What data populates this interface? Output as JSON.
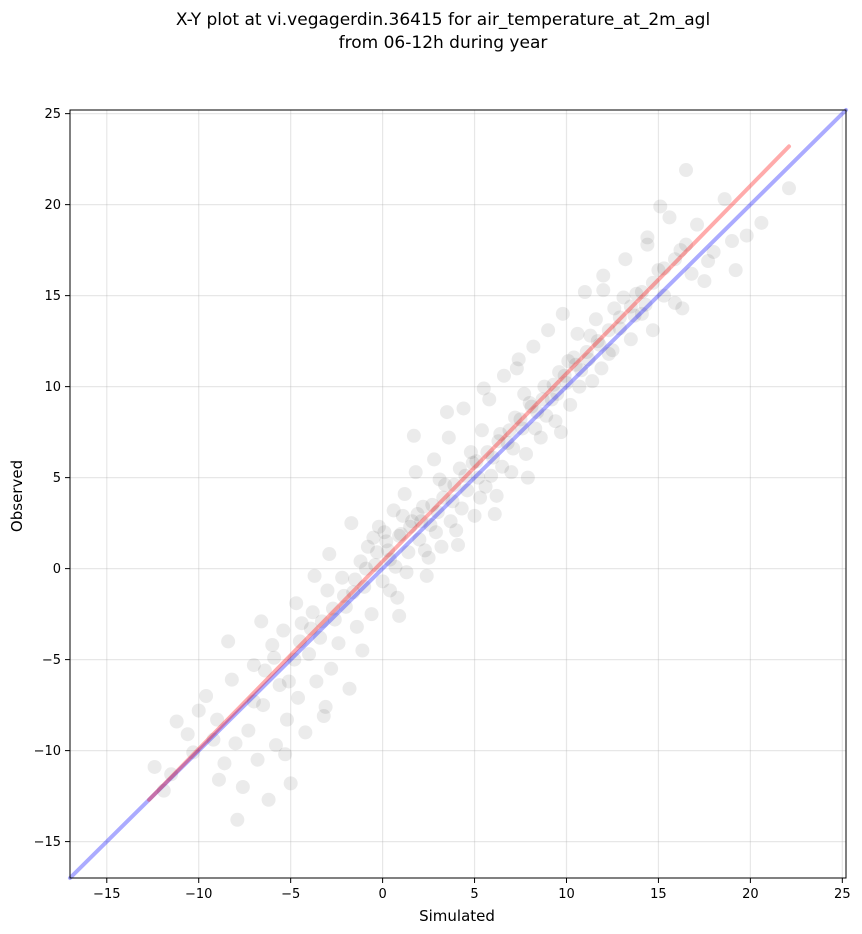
{
  "chart_data": {
    "type": "scatter",
    "title_line1": "X-Y plot at vi.vegagerdin.36415 for air_temperature_at_2m_agl",
    "title_line2": "from 06-12h during year",
    "xlabel": "Simulated",
    "ylabel": "Observed",
    "xlim": [
      -17,
      25.2
    ],
    "ylim": [
      -17,
      25.2
    ],
    "xticks": [
      -15,
      -10,
      -5,
      0,
      5,
      10,
      15,
      20,
      25
    ],
    "yticks": [
      -15,
      -10,
      -5,
      0,
      5,
      10,
      15,
      20,
      25
    ],
    "xtick_labels": [
      "−15",
      "−10",
      "−5",
      "0",
      "5",
      "10",
      "15",
      "20",
      "25"
    ],
    "ytick_labels": [
      "−15",
      "−10",
      "−5",
      "0",
      "5",
      "10",
      "15",
      "20",
      "25"
    ],
    "grid": true,
    "colors": {
      "points": "#000000",
      "identity_line": "#0000ff",
      "regression_line": "#ff0000"
    },
    "series": [
      {
        "kind": "points",
        "points": [
          [
            -12.4,
            -10.9
          ],
          [
            -11.9,
            -12.2
          ],
          [
            -11.2,
            -8.4
          ],
          [
            -10.6,
            -9.1
          ],
          [
            -10.3,
            -10.1
          ],
          [
            -9.6,
            -7.0
          ],
          [
            -9.2,
            -9.4
          ],
          [
            -8.9,
            -11.6
          ],
          [
            -8.6,
            -10.7
          ],
          [
            -8.2,
            -6.1
          ],
          [
            -7.9,
            -13.8
          ],
          [
            -7.6,
            -12.0
          ],
          [
            -7.3,
            -8.9
          ],
          [
            -7.0,
            -5.3
          ],
          [
            -6.8,
            -10.5
          ],
          [
            -6.5,
            -7.5
          ],
          [
            -6.2,
            -12.7
          ],
          [
            -6.0,
            -4.2
          ],
          [
            -5.8,
            -9.7
          ],
          [
            -5.6,
            -6.4
          ],
          [
            -5.4,
            -3.4
          ],
          [
            -5.2,
            -8.3
          ],
          [
            -5.0,
            -11.8
          ],
          [
            -4.8,
            -5.0
          ],
          [
            -4.6,
            -7.1
          ],
          [
            -4.4,
            -3.0
          ],
          [
            -4.2,
            -9.0
          ],
          [
            -4.0,
            -4.7
          ],
          [
            -3.8,
            -2.4
          ],
          [
            -3.6,
            -6.2
          ],
          [
            -3.4,
            -3.8
          ],
          [
            -3.2,
            -8.1
          ],
          [
            -3.0,
            -1.2
          ],
          [
            -2.8,
            -5.5
          ],
          [
            -2.6,
            -2.8
          ],
          [
            -2.4,
            -4.1
          ],
          [
            -2.2,
            -0.5
          ],
          [
            -2.0,
            -2.1
          ],
          [
            -1.8,
            -6.6
          ],
          [
            -1.6,
            -1.3
          ],
          [
            -1.4,
            -3.2
          ],
          [
            -1.2,
            0.4
          ],
          [
            -1.0,
            -1.0
          ],
          [
            -0.8,
            1.2
          ],
          [
            -0.6,
            -2.5
          ],
          [
            -0.4,
            0.2
          ],
          [
            -0.2,
            2.3
          ],
          [
            0.0,
            -0.7
          ],
          [
            0.2,
            1.5
          ],
          [
            0.4,
            0.5
          ],
          [
            0.6,
            3.2
          ],
          [
            0.8,
            -1.6
          ],
          [
            1.0,
            1.9
          ],
          [
            1.2,
            4.1
          ],
          [
            1.4,
            0.9
          ],
          [
            1.6,
            2.6
          ],
          [
            1.8,
            5.3
          ],
          [
            2.0,
            1.6
          ],
          [
            2.2,
            3.4
          ],
          [
            2.4,
            -0.4
          ],
          [
            2.6,
            2.4
          ],
          [
            2.8,
            6.0
          ],
          [
            3.0,
            3.1
          ],
          [
            3.2,
            1.2
          ],
          [
            3.4,
            4.6
          ],
          [
            3.6,
            7.2
          ],
          [
            3.8,
            3.7
          ],
          [
            4.0,
            2.1
          ],
          [
            4.2,
            5.5
          ],
          [
            4.4,
            8.8
          ],
          [
            4.6,
            4.3
          ],
          [
            4.8,
            6.4
          ],
          [
            5.0,
            2.9
          ],
          [
            5.2,
            5.0
          ],
          [
            5.4,
            7.6
          ],
          [
            5.6,
            4.5
          ],
          [
            5.8,
            9.3
          ],
          [
            6.0,
            6.1
          ],
          [
            6.2,
            4.0
          ],
          [
            6.4,
            7.4
          ],
          [
            6.6,
            10.6
          ],
          [
            6.8,
            6.9
          ],
          [
            7.0,
            5.3
          ],
          [
            7.2,
            8.3
          ],
          [
            7.4,
            11.5
          ],
          [
            7.6,
            7.7
          ],
          [
            7.8,
            6.3
          ],
          [
            8.0,
            9.1
          ],
          [
            8.2,
            12.2
          ],
          [
            8.4,
            8.6
          ],
          [
            8.6,
            7.2
          ],
          [
            8.8,
            10.0
          ],
          [
            9.0,
            13.1
          ],
          [
            9.2,
            9.3
          ],
          [
            9.4,
            8.1
          ],
          [
            9.6,
            10.8
          ],
          [
            9.8,
            14.0
          ],
          [
            10.0,
            10.2
          ],
          [
            10.2,
            9.0
          ],
          [
            10.4,
            11.6
          ],
          [
            10.6,
            12.9
          ],
          [
            10.8,
            10.9
          ],
          [
            11.0,
            15.2
          ],
          [
            11.2,
            11.5
          ],
          [
            11.4,
            10.3
          ],
          [
            11.6,
            13.7
          ],
          [
            11.8,
            12.3
          ],
          [
            12.0,
            16.1
          ],
          [
            12.3,
            11.8
          ],
          [
            12.6,
            14.3
          ],
          [
            12.9,
            13.2
          ],
          [
            13.2,
            17.0
          ],
          [
            13.5,
            12.6
          ],
          [
            13.8,
            15.1
          ],
          [
            14.1,
            14.0
          ],
          [
            14.4,
            18.2
          ],
          [
            14.7,
            13.1
          ],
          [
            15.0,
            16.4
          ],
          [
            15.3,
            15.0
          ],
          [
            15.6,
            19.3
          ],
          [
            15.9,
            14.6
          ],
          [
            16.2,
            17.5
          ],
          [
            16.5,
            21.9
          ],
          [
            16.8,
            16.2
          ],
          [
            17.1,
            18.9
          ],
          [
            17.5,
            15.8
          ],
          [
            18.0,
            17.4
          ],
          [
            18.6,
            20.3
          ],
          [
            19.2,
            16.4
          ],
          [
            19.8,
            18.3
          ],
          [
            20.6,
            19.0
          ],
          [
            22.1,
            20.9
          ],
          [
            -11.5,
            -11.3
          ],
          [
            -10.0,
            -7.8
          ],
          [
            -9.0,
            -8.3
          ],
          [
            -8.0,
            -9.6
          ],
          [
            -7.0,
            -7.3
          ],
          [
            -6.4,
            -5.6
          ],
          [
            -5.9,
            -4.9
          ],
          [
            -5.1,
            -6.2
          ],
          [
            -4.5,
            -4.0
          ],
          [
            -3.9,
            -3.3
          ],
          [
            -3.3,
            -2.9
          ],
          [
            -2.7,
            -2.2
          ],
          [
            -2.1,
            -1.5
          ],
          [
            -1.5,
            -0.6
          ],
          [
            -0.9,
            0.0
          ],
          [
            -0.3,
            0.9
          ],
          [
            0.3,
            1.0
          ],
          [
            0.9,
            1.8
          ],
          [
            1.5,
            2.3
          ],
          [
            2.1,
            2.6
          ],
          [
            2.7,
            3.5
          ],
          [
            3.3,
            3.9
          ],
          [
            3.9,
            4.6
          ],
          [
            4.5,
            5.1
          ],
          [
            5.1,
            5.9
          ],
          [
            5.7,
            6.4
          ],
          [
            6.3,
            7.0
          ],
          [
            6.9,
            7.6
          ],
          [
            7.5,
            8.2
          ],
          [
            8.1,
            8.9
          ],
          [
            8.7,
            9.3
          ],
          [
            9.3,
            10.1
          ],
          [
            9.9,
            10.6
          ],
          [
            10.5,
            11.2
          ],
          [
            11.1,
            11.9
          ],
          [
            11.7,
            12.5
          ],
          [
            12.3,
            13.1
          ],
          [
            12.9,
            13.8
          ],
          [
            13.5,
            14.4
          ],
          [
            14.1,
            15.2
          ],
          [
            14.7,
            15.7
          ],
          [
            15.3,
            16.5
          ],
          [
            15.9,
            17.0
          ],
          [
            16.5,
            17.8
          ],
          [
            -0.5,
            1.7
          ],
          [
            0.1,
            2.0
          ],
          [
            0.7,
            0.1
          ],
          [
            1.1,
            2.9
          ],
          [
            1.3,
            -0.2
          ],
          [
            1.9,
            3.0
          ],
          [
            2.3,
            1.0
          ],
          [
            2.9,
            2.0
          ],
          [
            3.1,
            4.9
          ],
          [
            3.7,
            2.6
          ],
          [
            4.3,
            3.3
          ],
          [
            4.9,
            5.8
          ],
          [
            5.3,
            3.9
          ],
          [
            5.9,
            5.1
          ],
          [
            6.5,
            5.6
          ],
          [
            7.1,
            6.6
          ],
          [
            7.7,
            9.6
          ],
          [
            8.3,
            7.7
          ],
          [
            8.9,
            8.4
          ],
          [
            9.5,
            9.6
          ],
          [
            10.1,
            11.4
          ],
          [
            10.7,
            10.0
          ],
          [
            11.3,
            12.8
          ],
          [
            11.9,
            11.0
          ],
          [
            12.5,
            12.0
          ],
          [
            13.1,
            14.9
          ],
          [
            13.7,
            13.9
          ],
          [
            14.3,
            14.5
          ],
          [
            0.4,
            -1.2
          ],
          [
            2.5,
            0.6
          ],
          [
            4.1,
            1.3
          ],
          [
            6.1,
            3.0
          ],
          [
            7.9,
            5.0
          ],
          [
            9.7,
            7.5
          ],
          [
            1.7,
            7.3
          ],
          [
            3.5,
            8.6
          ],
          [
            5.5,
            9.9
          ],
          [
            7.3,
            11.0
          ],
          [
            -2.9,
            0.8
          ],
          [
            -1.7,
            2.5
          ],
          [
            -3.7,
            -0.4
          ],
          [
            -4.7,
            -1.9
          ],
          [
            -6.6,
            -2.9
          ],
          [
            -8.4,
            -4.0
          ],
          [
            -5.3,
            -10.2
          ],
          [
            -3.1,
            -7.6
          ],
          [
            -1.1,
            -4.5
          ],
          [
            0.9,
            -2.6
          ],
          [
            16.3,
            14.3
          ],
          [
            17.7,
            16.9
          ],
          [
            19.0,
            18.0
          ],
          [
            15.1,
            19.9
          ],
          [
            14.4,
            17.8
          ],
          [
            12.0,
            15.3
          ]
        ]
      },
      {
        "kind": "line",
        "role": "identity",
        "points": [
          [
            -17,
            -17
          ],
          [
            25.2,
            25.2
          ]
        ]
      },
      {
        "kind": "line",
        "role": "regression",
        "points": [
          [
            -12.7,
            -12.7
          ],
          [
            22.1,
            23.2
          ]
        ]
      }
    ]
  }
}
